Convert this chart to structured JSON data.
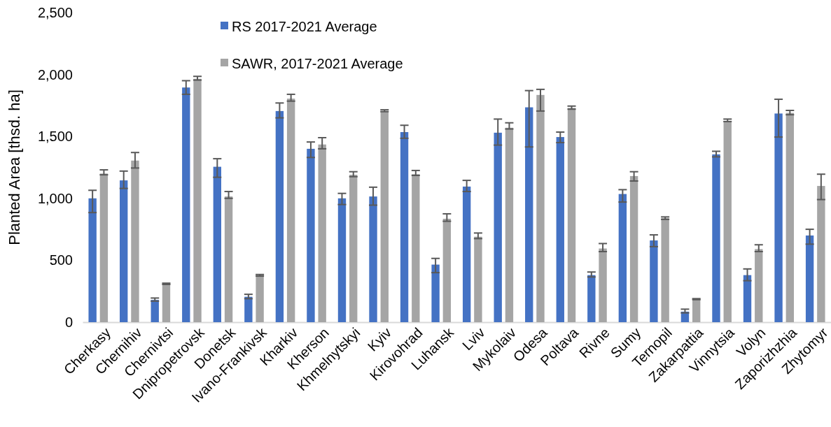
{
  "chart_data": {
    "type": "bar",
    "ylabel": "Planted Area [thsd. ha]",
    "categories": [
      "Cherkasy",
      "Chernihiv",
      "Chernivtsi",
      "Dnipropetrovsk",
      "Donetsk",
      "Ivano-Frankivsk",
      "Kharkiv",
      "Kherson",
      "Khmelnytskyi",
      "Kyiv",
      "Kirovohrad",
      "Luhansk",
      "Lviv",
      "Mykolaiv",
      "Odesa",
      "Poltava",
      "Rivne",
      "Sumy",
      "Ternopil",
      "Zakarpattia",
      "Vinnytsia",
      "Volyn",
      "Zaporizhzhia",
      "Zhytomyr"
    ],
    "series": [
      {
        "name": "RS 2017-2021 Average",
        "color": "#4472c4",
        "values": [
          1000,
          1145,
          180,
          1895,
          1255,
          205,
          1705,
          1400,
          1000,
          1015,
          1535,
          465,
          1095,
          1530,
          1735,
          1495,
          380,
          1035,
          660,
          85,
          1355,
          380,
          1685,
          700
        ],
        "errors": [
          [
            885,
            1065
          ],
          [
            1080,
            1220
          ],
          [
            170,
            195
          ],
          [
            1840,
            1950
          ],
          [
            1170,
            1320
          ],
          [
            190,
            225
          ],
          [
            1650,
            1770
          ],
          [
            1330,
            1455
          ],
          [
            950,
            1040
          ],
          [
            945,
            1090
          ],
          [
            1485,
            1590
          ],
          [
            400,
            515
          ],
          [
            1055,
            1145
          ],
          [
            1430,
            1640
          ],
          [
            1415,
            1870
          ],
          [
            1450,
            1535
          ],
          [
            365,
            405
          ],
          [
            970,
            1070
          ],
          [
            610,
            705
          ],
          [
            75,
            105
          ],
          [
            1335,
            1380
          ],
          [
            335,
            430
          ],
          [
            1495,
            1800
          ],
          [
            630,
            750
          ]
        ]
      },
      {
        "name": "SAWR, 2017-2021 Average",
        "color": "#a5a5a5",
        "values": [
          1200,
          1305,
          310,
          1965,
          1015,
          380,
          1805,
          1435,
          1190,
          1705,
          1195,
          835,
          690,
          1570,
          1835,
          1730,
          595,
          1180,
          840,
          188,
          1625,
          590,
          1690,
          1100
        ],
        "errors": [
          [
            1190,
            1230
          ],
          [
            1245,
            1370
          ],
          [
            305,
            315
          ],
          [
            1955,
            1985
          ],
          [
            1000,
            1055
          ],
          [
            372,
            385
          ],
          [
            1785,
            1840
          ],
          [
            1400,
            1490
          ],
          [
            1175,
            1215
          ],
          [
            1700,
            1715
          ],
          [
            1185,
            1225
          ],
          [
            815,
            875
          ],
          [
            675,
            720
          ],
          [
            1560,
            1610
          ],
          [
            1705,
            1880
          ],
          [
            1720,
            1745
          ],
          [
            570,
            635
          ],
          [
            1140,
            1215
          ],
          [
            830,
            850
          ],
          [
            182,
            190
          ],
          [
            1620,
            1640
          ],
          [
            570,
            625
          ],
          [
            1675,
            1710
          ],
          [
            990,
            1195
          ]
        ]
      }
    ],
    "ylim": [
      0,
      2500
    ],
    "yticks": [
      {
        "value": 0,
        "label": "0"
      },
      {
        "value": 500,
        "label": "500"
      },
      {
        "value": 1000,
        "label": "1,000"
      },
      {
        "value": 1500,
        "label": "1,500"
      },
      {
        "value": 2000,
        "label": "2,000"
      },
      {
        "value": 2500,
        "label": "2,500"
      }
    ],
    "grid": false,
    "legend": "top"
  }
}
